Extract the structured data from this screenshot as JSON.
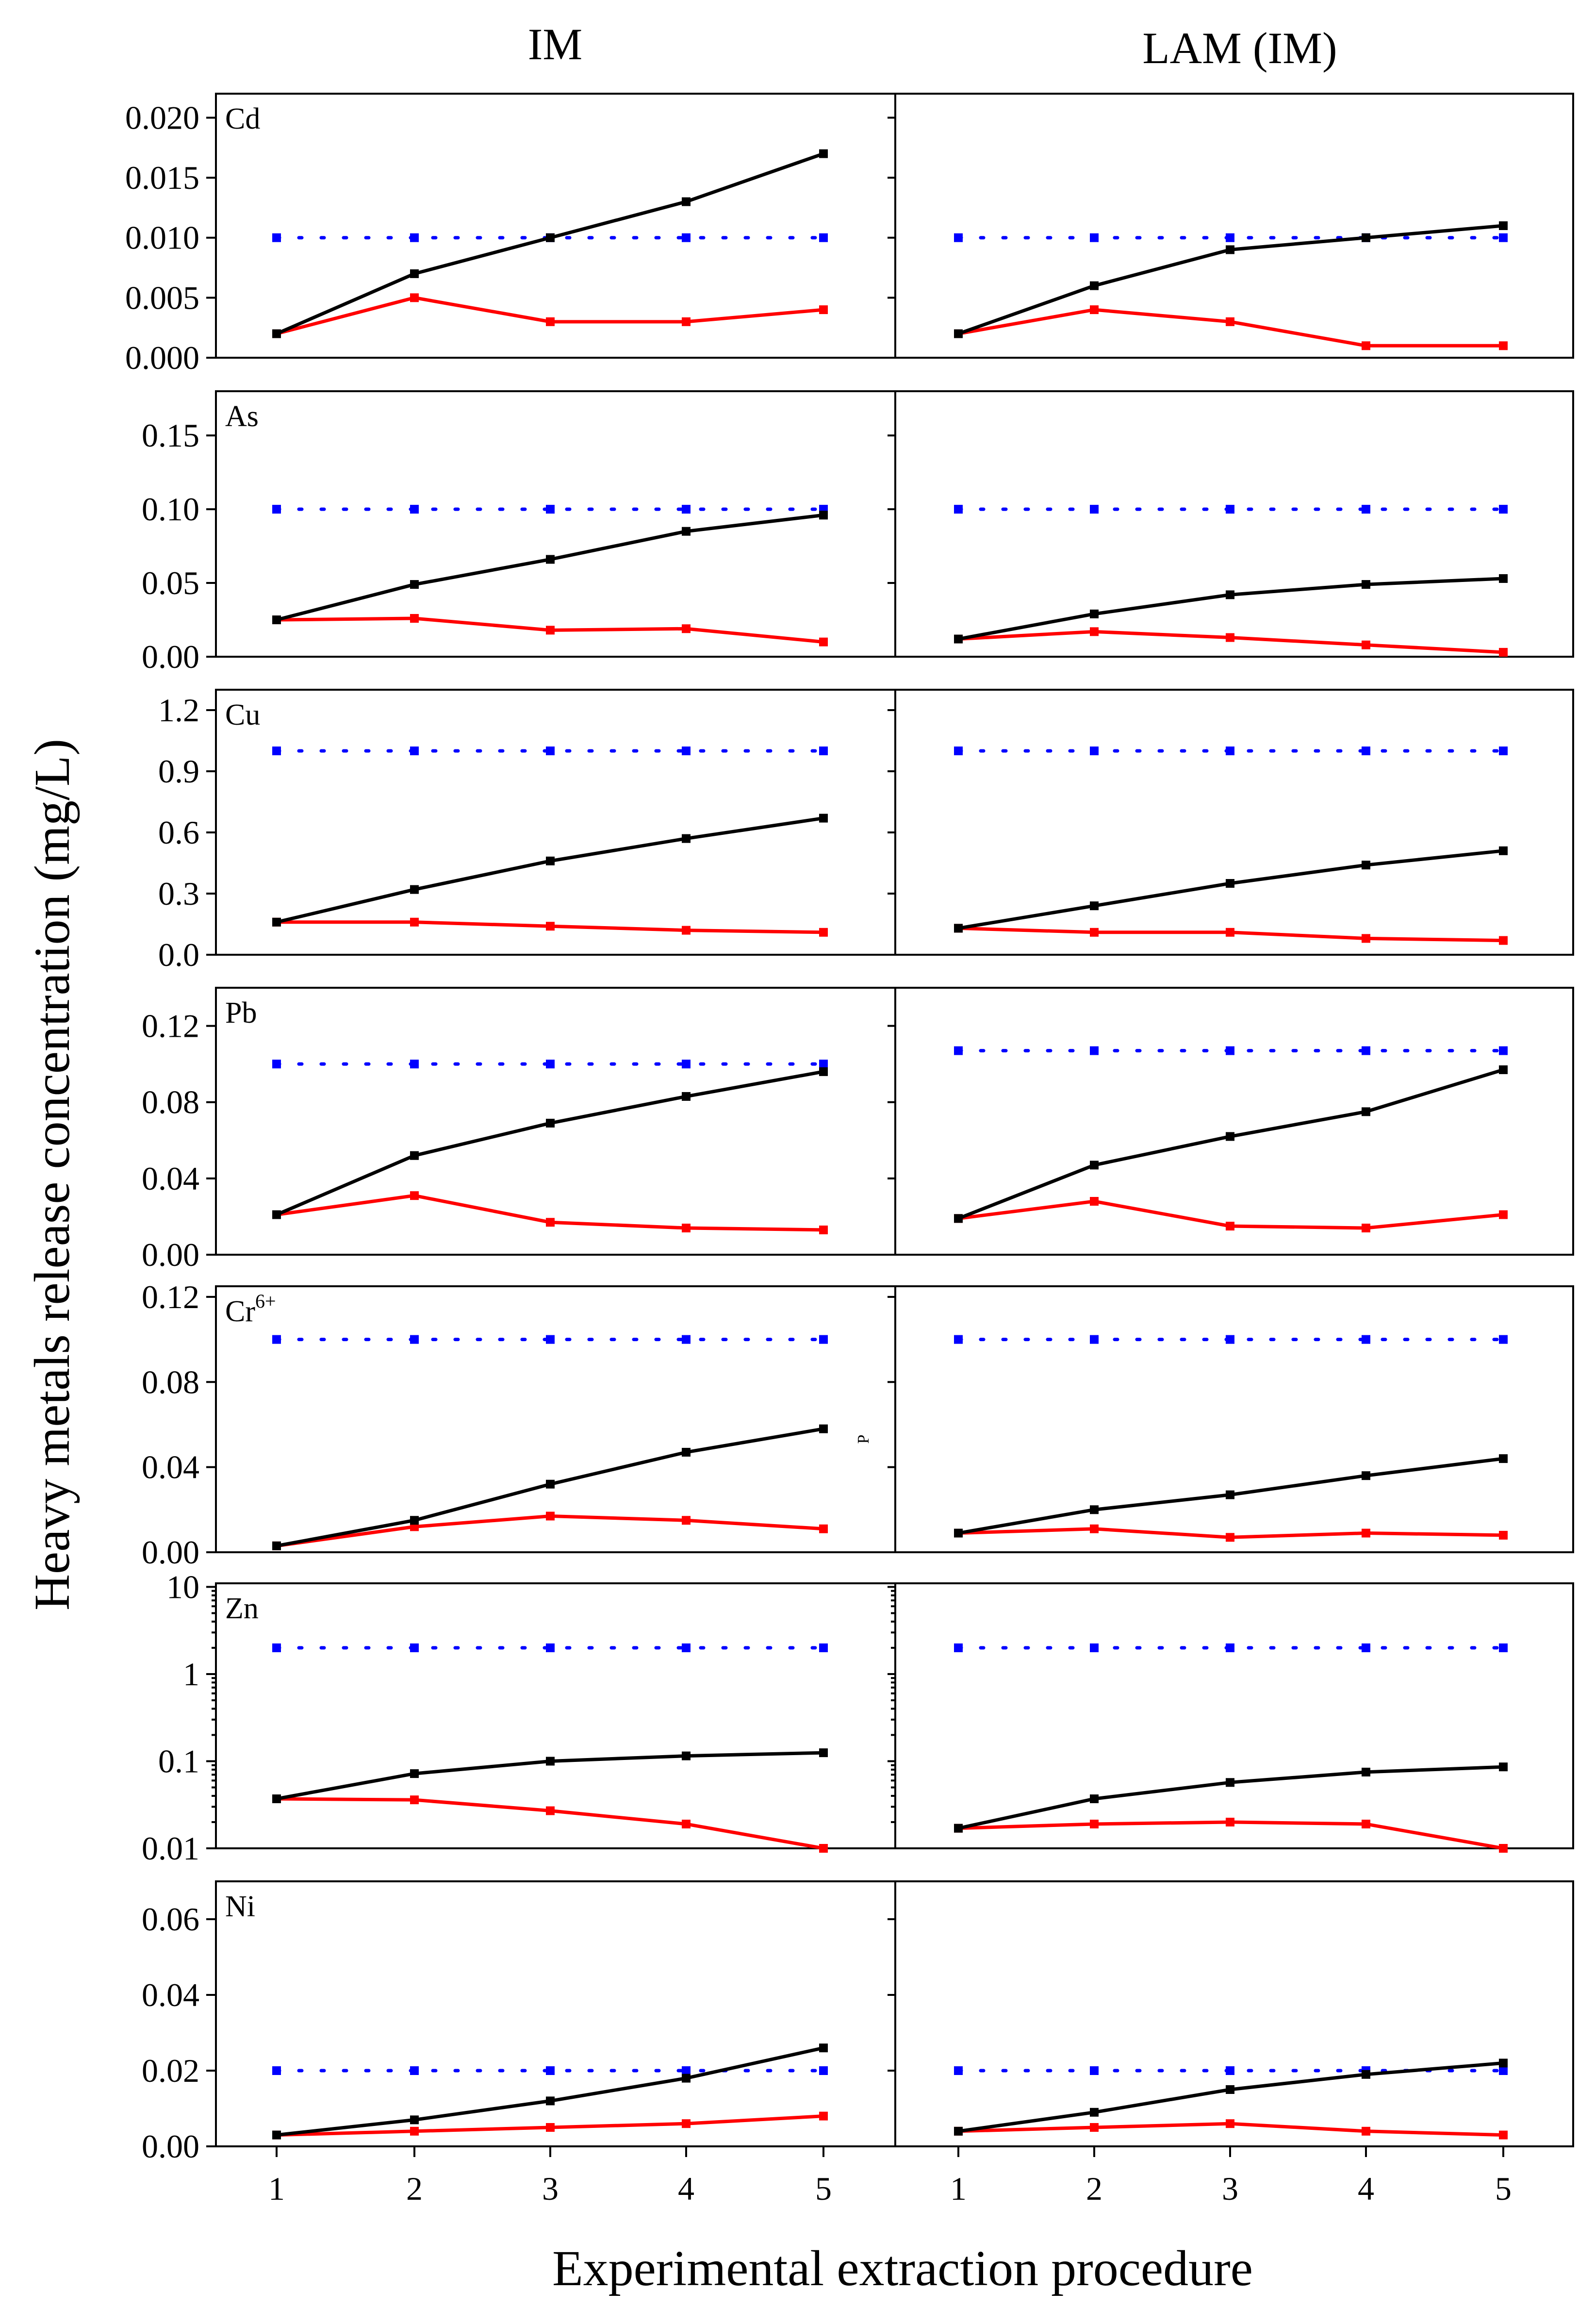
{
  "figure": {
    "columns": [
      "IM",
      "LAM (IM)"
    ],
    "ylabel": "Heavy metals release concentration (mg/L)",
    "xlabel": "Experimental extraction procedure",
    "stray_label": "P",
    "colors": {
      "black_series": "#000000",
      "red_series": "#ff0000",
      "limit_series": "#0000ff"
    }
  },
  "chart_data": [
    {
      "type": "line",
      "element": "Cd",
      "element_sup": "",
      "yscale": "linear",
      "ylim": [
        0,
        0.022
      ],
      "yticks": [
        "0.000",
        "0.005",
        "0.010",
        "0.015",
        "0.020"
      ],
      "ytick_values": [
        0,
        0.005,
        0.01,
        0.015,
        0.02
      ],
      "x": [
        1,
        2,
        3,
        4,
        5
      ],
      "IM": {
        "black": [
          0.002,
          0.007,
          0.01,
          0.013,
          0.017
        ],
        "red": [
          0.002,
          0.005,
          0.003,
          0.003,
          0.004
        ],
        "blue": [
          0.01,
          0.01,
          0.01,
          0.01,
          0.01
        ]
      },
      "LAM": {
        "black": [
          0.002,
          0.006,
          0.009,
          0.01,
          0.011
        ],
        "red": [
          0.002,
          0.004,
          0.003,
          0.001,
          0.001
        ],
        "blue": [
          0.01,
          0.01,
          0.01,
          0.01,
          0.01
        ]
      }
    },
    {
      "type": "line",
      "element": "As",
      "element_sup": "",
      "yscale": "linear",
      "ylim": [
        0,
        0.18
      ],
      "yticks": [
        "0.00",
        "0.05",
        "0.10",
        "0.15"
      ],
      "ytick_values": [
        0,
        0.05,
        0.1,
        0.15
      ],
      "x": [
        1,
        2,
        3,
        4,
        5
      ],
      "IM": {
        "black": [
          0.025,
          0.049,
          0.066,
          0.085,
          0.096
        ],
        "red": [
          0.025,
          0.026,
          0.018,
          0.019,
          0.01
        ],
        "blue": [
          0.1,
          0.1,
          0.1,
          0.1,
          0.1
        ]
      },
      "LAM": {
        "black": [
          0.012,
          0.029,
          0.042,
          0.049,
          0.053
        ],
        "red": [
          0.012,
          0.017,
          0.013,
          0.008,
          0.003
        ],
        "blue": [
          0.1,
          0.1,
          0.1,
          0.1,
          0.1
        ]
      }
    },
    {
      "type": "line",
      "element": "Cu",
      "element_sup": "",
      "yscale": "linear",
      "ylim": [
        0,
        1.3
      ],
      "yticks": [
        "0.0",
        "0.3",
        "0.6",
        "0.9",
        "1.2"
      ],
      "ytick_values": [
        0,
        0.3,
        0.6,
        0.9,
        1.2
      ],
      "x": [
        1,
        2,
        3,
        4,
        5
      ],
      "IM": {
        "black": [
          0.16,
          0.32,
          0.46,
          0.57,
          0.67
        ],
        "red": [
          0.16,
          0.16,
          0.14,
          0.12,
          0.11
        ],
        "blue": [
          1.0,
          1.0,
          1.0,
          1.0,
          1.0
        ]
      },
      "LAM": {
        "black": [
          0.13,
          0.24,
          0.35,
          0.44,
          0.51
        ],
        "red": [
          0.13,
          0.11,
          0.11,
          0.08,
          0.07
        ],
        "blue": [
          1.0,
          1.0,
          1.0,
          1.0,
          1.0
        ]
      }
    },
    {
      "type": "line",
      "element": "Pb",
      "element_sup": "",
      "yscale": "linear",
      "ylim": [
        0,
        0.14
      ],
      "yticks": [
        "0.00",
        "0.04",
        "0.08",
        "0.12"
      ],
      "ytick_values": [
        0,
        0.04,
        0.08,
        0.12
      ],
      "x": [
        1,
        2,
        3,
        4,
        5
      ],
      "IM": {
        "black": [
          0.021,
          0.052,
          0.069,
          0.083,
          0.096
        ],
        "red": [
          0.021,
          0.031,
          0.017,
          0.014,
          0.013
        ],
        "blue": [
          0.1,
          0.1,
          0.1,
          0.1,
          0.1
        ]
      },
      "LAM": {
        "black": [
          0.019,
          0.047,
          0.062,
          0.075,
          0.097
        ],
        "red": [
          0.019,
          0.028,
          0.015,
          0.014,
          0.021
        ],
        "blue": [
          0.107,
          0.107,
          0.107,
          0.107,
          0.107
        ]
      }
    },
    {
      "type": "line",
      "element": "Cr",
      "element_sup": "6+",
      "yscale": "linear",
      "ylim": [
        0,
        0.125
      ],
      "yticks": [
        "0.00",
        "0.04",
        "0.08",
        "0.12"
      ],
      "ytick_values": [
        0,
        0.04,
        0.08,
        0.12
      ],
      "x": [
        1,
        2,
        3,
        4,
        5
      ],
      "IM": {
        "black": [
          0.003,
          0.015,
          0.032,
          0.047,
          0.058
        ],
        "red": [
          0.003,
          0.012,
          0.017,
          0.015,
          0.011
        ],
        "blue": [
          0.1,
          0.1,
          0.1,
          0.1,
          0.1
        ]
      },
      "LAM": {
        "black": [
          0.009,
          0.02,
          0.027,
          0.036,
          0.044
        ],
        "red": [
          0.009,
          0.011,
          0.007,
          0.009,
          0.008
        ],
        "blue": [
          0.1,
          0.1,
          0.1,
          0.1,
          0.1
        ]
      }
    },
    {
      "type": "line",
      "element": "Zn",
      "element_sup": "",
      "yscale": "log",
      "ylim": [
        0.01,
        11
      ],
      "yticks": [
        "0.01",
        "0.1",
        "1",
        "10"
      ],
      "ytick_values": [
        0.01,
        0.1,
        1,
        10
      ],
      "x": [
        1,
        2,
        3,
        4,
        5
      ],
      "IM": {
        "black": [
          0.037,
          0.072,
          0.1,
          0.115,
          0.125
        ],
        "red": [
          0.037,
          0.036,
          0.027,
          0.019,
          0.0095
        ],
        "blue": [
          2,
          2,
          2,
          2,
          2
        ]
      },
      "LAM": {
        "black": [
          0.017,
          0.037,
          0.057,
          0.075,
          0.086
        ],
        "red": [
          0.017,
          0.019,
          0.02,
          0.019,
          0.0099
        ],
        "blue": [
          2,
          2,
          2,
          2,
          2
        ]
      }
    },
    {
      "type": "line",
      "element": "Ni",
      "element_sup": "",
      "yscale": "linear",
      "ylim": [
        0,
        0.07
      ],
      "yticks": [
        "0.00",
        "0.02",
        "0.04",
        "0.06"
      ],
      "ytick_values": [
        0,
        0.02,
        0.04,
        0.06
      ],
      "x": [
        1,
        2,
        3,
        4,
        5
      ],
      "IM": {
        "black": [
          0.003,
          0.007,
          0.012,
          0.018,
          0.026
        ],
        "red": [
          0.003,
          0.004,
          0.005,
          0.006,
          0.008
        ],
        "blue": [
          0.02,
          0.02,
          0.02,
          0.02,
          0.02
        ]
      },
      "LAM": {
        "black": [
          0.004,
          0.009,
          0.015,
          0.019,
          0.022
        ],
        "red": [
          0.004,
          0.005,
          0.006,
          0.004,
          0.003
        ],
        "blue": [
          0.02,
          0.02,
          0.02,
          0.02,
          0.02
        ]
      }
    }
  ],
  "x_ticks": [
    "1",
    "2",
    "3",
    "4",
    "5"
  ]
}
